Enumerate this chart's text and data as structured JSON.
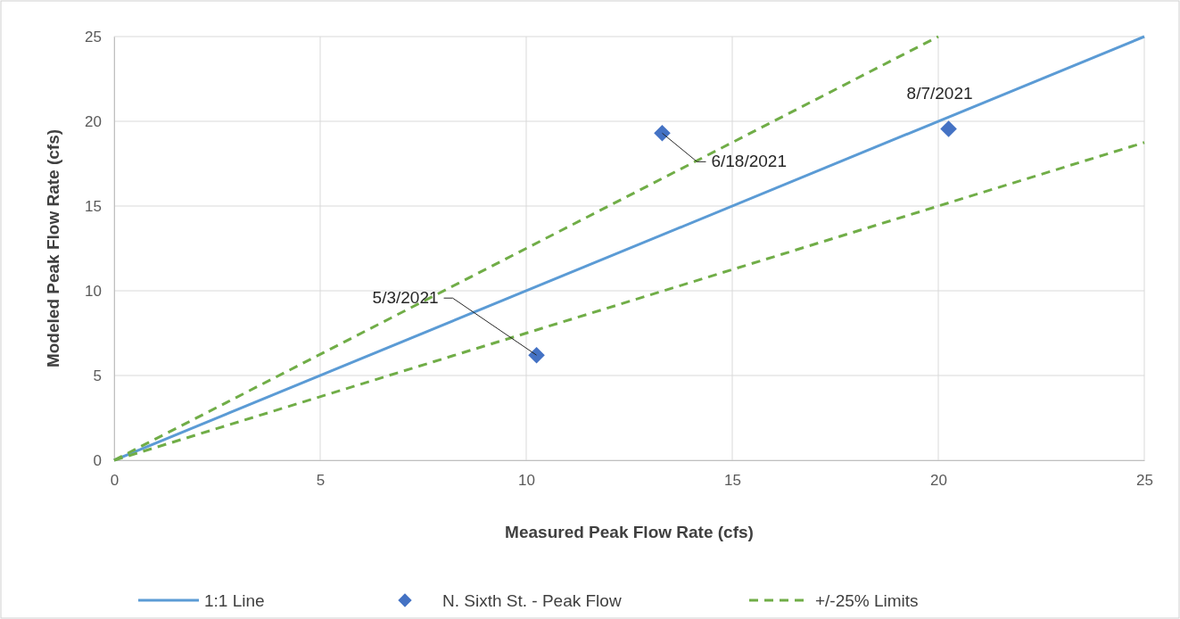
{
  "chart_data": {
    "type": "scatter",
    "xlabel": "Measured Peak Flow Rate (cfs)",
    "ylabel": "Modeled Peak Flow Rate (cfs)",
    "xlim": [
      0,
      25
    ],
    "ylim": [
      0,
      25
    ],
    "xticks": [
      0,
      5,
      10,
      15,
      20,
      25
    ],
    "yticks": [
      0,
      5,
      10,
      15,
      20,
      25
    ],
    "grid": true,
    "legend": "bottom",
    "series": [
      {
        "type": "line",
        "name": "1:1 Line",
        "color": "#5b9bd5",
        "x": [
          0,
          25
        ],
        "values": [
          0,
          25
        ],
        "line_style": "solid",
        "marker": "none"
      },
      {
        "name": "N. Sixth St. - Peak Flow",
        "color": "#4472c4",
        "x": [
          10.25,
          13.3,
          20.25
        ],
        "values": [
          6.2,
          19.3,
          19.55
        ],
        "marker": "diamond"
      },
      {
        "type": "line",
        "name": "+/-25% Limits",
        "color": "#70ad47",
        "x": [
          0,
          20
        ],
        "values": [
          0,
          25
        ],
        "line_style": "dashed",
        "marker": "none"
      },
      {
        "type": "line",
        "color": "#70ad47",
        "x": [
          0,
          25
        ],
        "values": [
          0,
          18.75
        ],
        "line_style": "dashed",
        "marker": "none"
      }
    ],
    "annotations": [
      {
        "text": "5/3/2021",
        "x": 10.25,
        "y": 6.2
      },
      {
        "text": "6/18/2021",
        "x": 13.3,
        "y": 19.3
      },
      {
        "text": "8/7/2021",
        "x": 20.25,
        "y": 19.55
      }
    ]
  }
}
